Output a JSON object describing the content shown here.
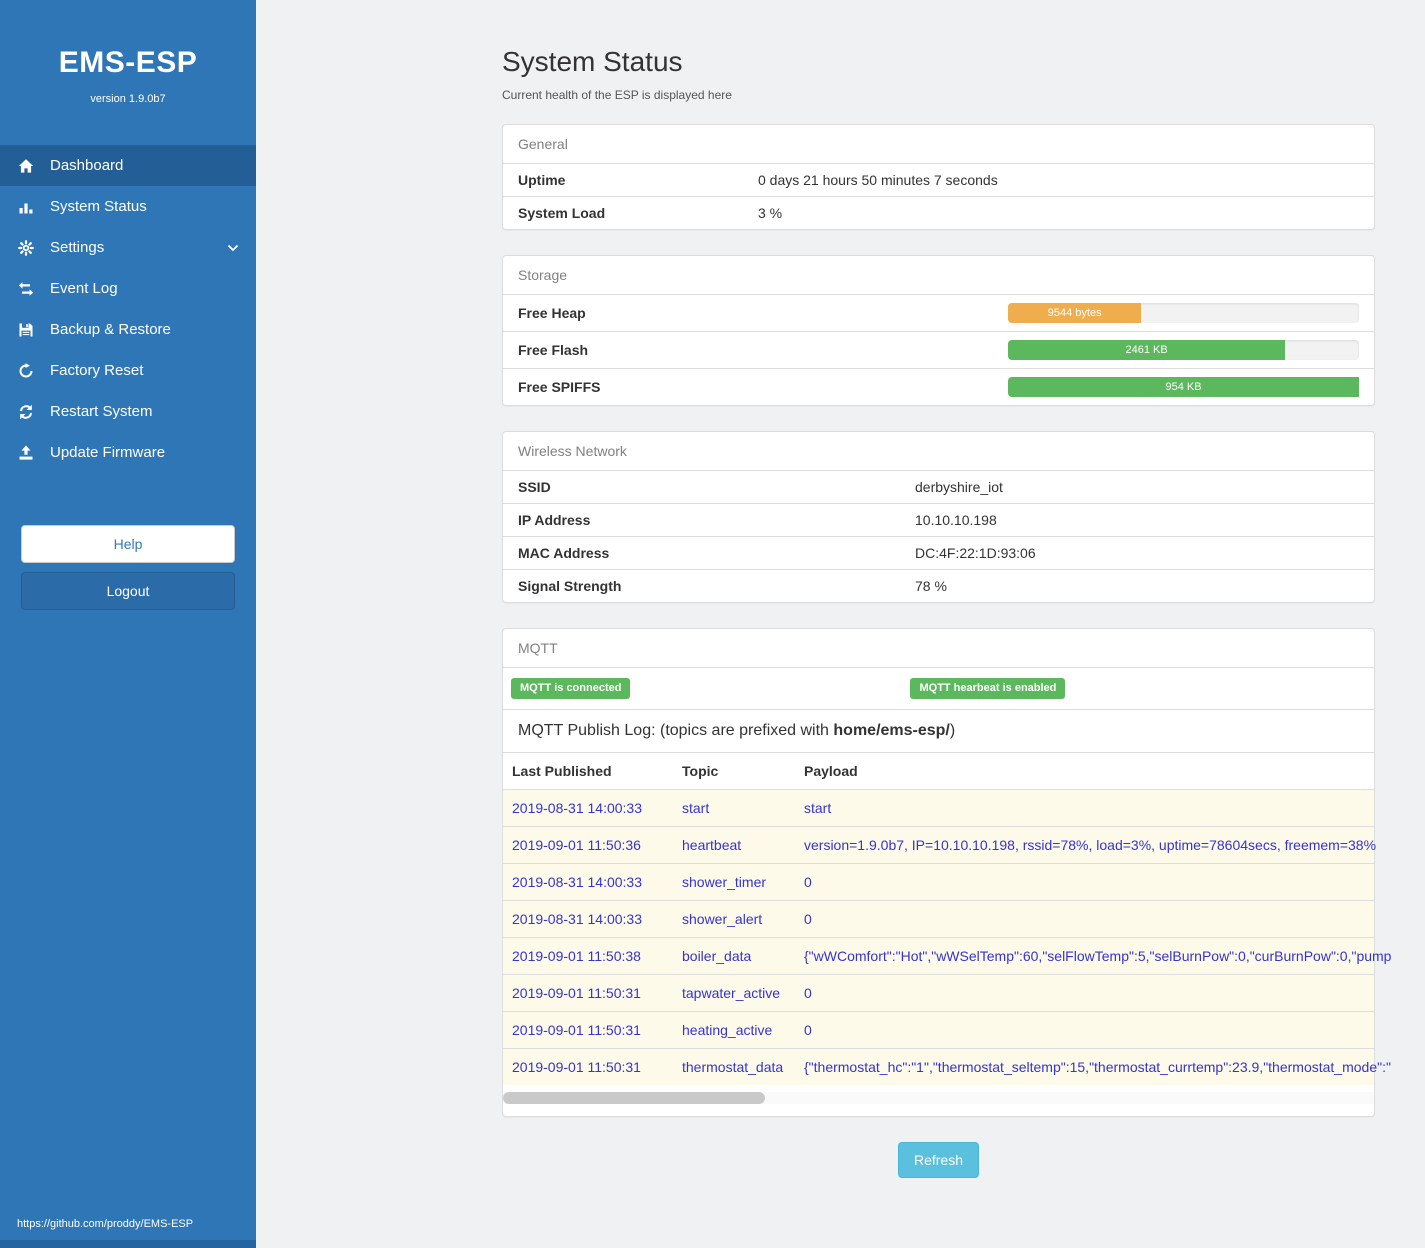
{
  "colors": {
    "sidebar_blue": "#2e76b5",
    "active_item_blue": "#235e97",
    "badge_green": "#5cb85c",
    "bar_orange": "#f0ad4e",
    "bar_green": "#5cb85c",
    "refresh_blue": "#5bc0de",
    "link_blue": "#3434cf"
  },
  "sidebar": {
    "app_title": "EMS-ESP",
    "version": "version 1.9.0b7",
    "items": [
      {
        "label": "Dashboard",
        "icon": "home-icon",
        "active": true
      },
      {
        "label": "System Status",
        "icon": "bar-chart-icon",
        "active": false
      },
      {
        "label": "Settings",
        "icon": "gear-icon",
        "active": false,
        "chevron": true
      },
      {
        "label": "Event Log",
        "icon": "exchange-arrows-icon",
        "active": false
      },
      {
        "label": "Backup & Restore",
        "icon": "save-icon",
        "active": false
      },
      {
        "label": "Factory Reset",
        "icon": "reset-icon",
        "active": false
      },
      {
        "label": "Restart System",
        "icon": "restart-icon",
        "active": false
      },
      {
        "label": "Update Firmware",
        "icon": "upload-icon",
        "active": false
      }
    ],
    "help_label": "Help",
    "logout_label": "Logout",
    "footer_url": "https://github.com/proddy/EMS-ESP"
  },
  "page": {
    "title": "System Status",
    "subtitle": "Current health of the ESP is displayed here"
  },
  "general": {
    "title": "General",
    "rows": [
      {
        "label": "Uptime",
        "value": "0 days 21 hours 50 minutes 7 seconds"
      },
      {
        "label": "System Load",
        "value": "3 %"
      }
    ]
  },
  "storage": {
    "title": "Storage",
    "rows": [
      {
        "label": "Free Heap",
        "bar_label": "9544 bytes",
        "percent": 38,
        "color": "#f0ad4e"
      },
      {
        "label": "Free Flash",
        "bar_label": "2461 KB",
        "percent": 79,
        "color": "#5cb85c"
      },
      {
        "label": "Free SPIFFS",
        "bar_label": "954 KB",
        "percent": 100,
        "color": "#5cb85c"
      }
    ]
  },
  "wireless": {
    "title": "Wireless Network",
    "rows": [
      {
        "label": "SSID",
        "value": "derbyshire_iot"
      },
      {
        "label": "IP Address",
        "value": "10.10.10.198"
      },
      {
        "label": "MAC Address",
        "value": "DC:4F:22:1D:93:06"
      },
      {
        "label": "Signal Strength",
        "value": "78 %"
      }
    ]
  },
  "mqtt": {
    "title": "MQTT",
    "badges": [
      "MQTT is connected",
      "MQTT hearbeat is enabled"
    ],
    "log_title_prefix": "MQTT Publish Log: (topics are prefixed with ",
    "log_title_bold": "home/ems-esp/",
    "log_title_suffix": ")",
    "table": {
      "headers": [
        "Last Published",
        "Topic",
        "Payload"
      ],
      "rows": [
        {
          "date": "2019-08-31 14:00:33",
          "topic": "start",
          "payload": "start"
        },
        {
          "date": "2019-09-01 11:50:36",
          "topic": "heartbeat",
          "payload": "version=1.9.0b7, IP=10.10.10.198, rssid=78%, load=3%, uptime=78604secs, freemem=38%"
        },
        {
          "date": "2019-08-31 14:00:33",
          "topic": "shower_timer",
          "payload": "0"
        },
        {
          "date": "2019-08-31 14:00:33",
          "topic": "shower_alert",
          "payload": "0"
        },
        {
          "date": "2019-09-01 11:50:38",
          "topic": "boiler_data",
          "payload": "{\"wWComfort\":\"Hot\",\"wWSelTemp\":60,\"selFlowTemp\":5,\"selBurnPow\":0,\"curBurnPow\":0,\"pump"
        },
        {
          "date": "2019-09-01 11:50:31",
          "topic": "tapwater_active",
          "payload": "0"
        },
        {
          "date": "2019-09-01 11:50:31",
          "topic": "heating_active",
          "payload": "0"
        },
        {
          "date": "2019-09-01 11:50:31",
          "topic": "thermostat_data",
          "payload": "{\"thermostat_hc\":\"1\",\"thermostat_seltemp\":15,\"thermostat_currtemp\":23.9,\"thermostat_mode\":\""
        }
      ]
    }
  },
  "refresh_label": "Refresh"
}
